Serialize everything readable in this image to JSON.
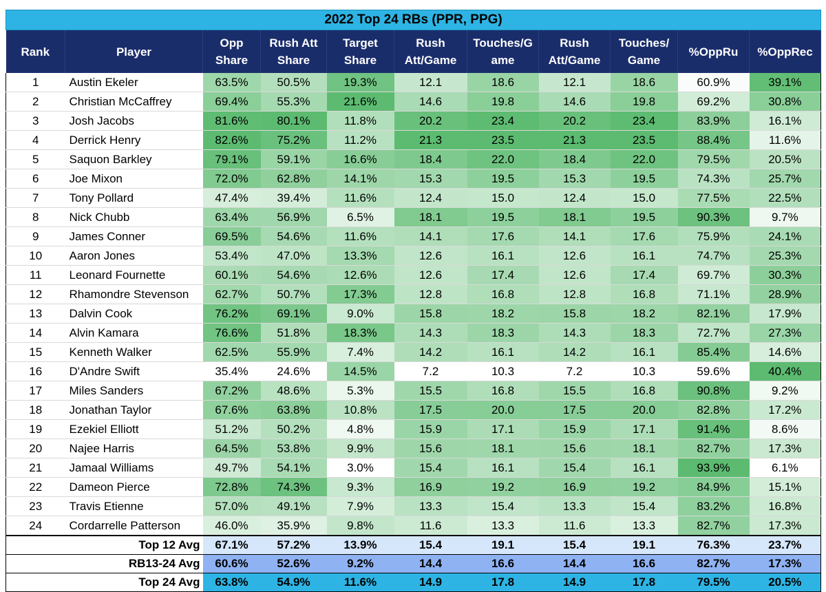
{
  "chart_data": {
    "type": "table",
    "title": "2022 Top 24 RBs (PPR, PPG)",
    "columns": [
      {
        "label": "Rank"
      },
      {
        "label": "Player"
      },
      {
        "label": "Opp Share"
      },
      {
        "label": "Rush Att Share"
      },
      {
        "label": "Target Share"
      },
      {
        "label": "Rush Att/Game"
      },
      {
        "label": "Touches/G ame"
      },
      {
        "label": "Rush Att/Game"
      },
      {
        "label": "Touches/ Game"
      },
      {
        "label": "%OppRu"
      },
      {
        "label": "%OppRec"
      }
    ],
    "rows": [
      [
        "1",
        "Austin Ekeler",
        "63.5%",
        "50.5%",
        "19.3%",
        "12.1",
        "18.6",
        "12.1",
        "18.6",
        "60.9%",
        "39.1%"
      ],
      [
        "2",
        "Christian McCaffrey",
        "69.4%",
        "55.3%",
        "21.6%",
        "14.6",
        "19.8",
        "14.6",
        "19.8",
        "69.2%",
        "30.8%"
      ],
      [
        "3",
        "Josh Jacobs",
        "81.6%",
        "80.1%",
        "11.8%",
        "20.2",
        "23.4",
        "20.2",
        "23.4",
        "83.9%",
        "16.1%"
      ],
      [
        "4",
        "Derrick Henry",
        "82.6%",
        "75.2%",
        "11.2%",
        "21.3",
        "23.5",
        "21.3",
        "23.5",
        "88.4%",
        "11.6%"
      ],
      [
        "5",
        "Saquon Barkley",
        "79.1%",
        "59.1%",
        "16.6%",
        "18.4",
        "22.0",
        "18.4",
        "22.0",
        "79.5%",
        "20.5%"
      ],
      [
        "6",
        "Joe Mixon",
        "72.0%",
        "62.8%",
        "14.1%",
        "15.3",
        "19.5",
        "15.3",
        "19.5",
        "74.3%",
        "25.7%"
      ],
      [
        "7",
        "Tony Pollard",
        "47.4%",
        "39.4%",
        "11.6%",
        "12.4",
        "15.0",
        "12.4",
        "15.0",
        "77.5%",
        "22.5%"
      ],
      [
        "8",
        "Nick Chubb",
        "63.4%",
        "56.9%",
        "6.5%",
        "18.1",
        "19.5",
        "18.1",
        "19.5",
        "90.3%",
        "9.7%"
      ],
      [
        "9",
        "James Conner",
        "69.5%",
        "54.6%",
        "11.6%",
        "14.1",
        "17.6",
        "14.1",
        "17.6",
        "75.9%",
        "24.1%"
      ],
      [
        "10",
        "Aaron Jones",
        "53.4%",
        "47.0%",
        "13.3%",
        "12.6",
        "16.1",
        "12.6",
        "16.1",
        "74.7%",
        "25.3%"
      ],
      [
        "11",
        "Leonard Fournette",
        "60.1%",
        "54.6%",
        "12.6%",
        "12.6",
        "17.4",
        "12.6",
        "17.4",
        "69.7%",
        "30.3%"
      ],
      [
        "12",
        "Rhamondre Stevenson",
        "62.7%",
        "50.7%",
        "17.3%",
        "12.8",
        "16.8",
        "12.8",
        "16.8",
        "71.1%",
        "28.9%"
      ],
      [
        "13",
        "Dalvin Cook",
        "76.2%",
        "69.1%",
        "9.0%",
        "15.8",
        "18.2",
        "15.8",
        "18.2",
        "82.1%",
        "17.9%"
      ],
      [
        "14",
        "Alvin Kamara",
        "76.6%",
        "51.8%",
        "18.3%",
        "14.3",
        "18.3",
        "14.3",
        "18.3",
        "72.7%",
        "27.3%"
      ],
      [
        "15",
        "Kenneth Walker",
        "62.5%",
        "55.9%",
        "7.4%",
        "14.2",
        "16.1",
        "14.2",
        "16.1",
        "85.4%",
        "14.6%"
      ],
      [
        "16",
        "D'Andre Swift",
        "35.4%",
        "24.6%",
        "14.5%",
        "7.2",
        "10.3",
        "7.2",
        "10.3",
        "59.6%",
        "40.4%"
      ],
      [
        "17",
        "Miles Sanders",
        "67.2%",
        "48.6%",
        "5.3%",
        "15.5",
        "16.8",
        "15.5",
        "16.8",
        "90.8%",
        "9.2%"
      ],
      [
        "18",
        "Jonathan Taylor",
        "67.6%",
        "63.8%",
        "10.8%",
        "17.5",
        "20.0",
        "17.5",
        "20.0",
        "82.8%",
        "17.2%"
      ],
      [
        "19",
        "Ezekiel Elliott",
        "51.2%",
        "50.2%",
        "4.8%",
        "15.9",
        "17.1",
        "15.9",
        "17.1",
        "91.4%",
        "8.6%"
      ],
      [
        "20",
        "Najee Harris",
        "64.5%",
        "53.8%",
        "9.9%",
        "15.6",
        "18.1",
        "15.6",
        "18.1",
        "82.7%",
        "17.3%"
      ],
      [
        "21",
        "Jamaal Williams",
        "49.7%",
        "54.1%",
        "3.0%",
        "15.4",
        "16.1",
        "15.4",
        "16.1",
        "93.9%",
        "6.1%"
      ],
      [
        "22",
        "Dameon Pierce",
        "72.8%",
        "74.3%",
        "9.3%",
        "16.9",
        "19.2",
        "16.9",
        "19.2",
        "84.9%",
        "15.1%"
      ],
      [
        "23",
        "Travis Etienne",
        "57.0%",
        "49.1%",
        "7.9%",
        "13.3",
        "15.4",
        "13.3",
        "15.4",
        "83.2%",
        "16.8%"
      ],
      [
        "24",
        "Cordarrelle Patterson",
        "46.0%",
        "35.9%",
        "9.8%",
        "11.6",
        "13.3",
        "11.6",
        "13.3",
        "82.7%",
        "17.3%"
      ]
    ],
    "averages": [
      {
        "label": "Top 12 Avg",
        "values": [
          "67.1%",
          "57.2%",
          "13.9%",
          "15.4",
          "19.1",
          "15.4",
          "19.1",
          "76.3%",
          "23.7%"
        ]
      },
      {
        "label": "RB13-24 Avg",
        "values": [
          "60.6%",
          "52.6%",
          "9.2%",
          "14.4",
          "16.6",
          "14.4",
          "16.6",
          "82.7%",
          "17.3%"
        ]
      },
      {
        "label": "Top 24 Avg",
        "values": [
          "63.8%",
          "54.9%",
          "11.6%",
          "14.9",
          "17.8",
          "14.9",
          "17.8",
          "79.5%",
          "20.5%"
        ]
      }
    ],
    "colors": {
      "title_bg": "#2db4e4",
      "header_bg": "#1a2d6b",
      "scale_low": "#ffffff",
      "scale_high": "#5cbb70",
      "top12_avg_bg": "#d6e6fb",
      "rb13_24_avg_bg": "#8fb2f2",
      "top24_avg_bg": "#2db4e4"
    }
  }
}
